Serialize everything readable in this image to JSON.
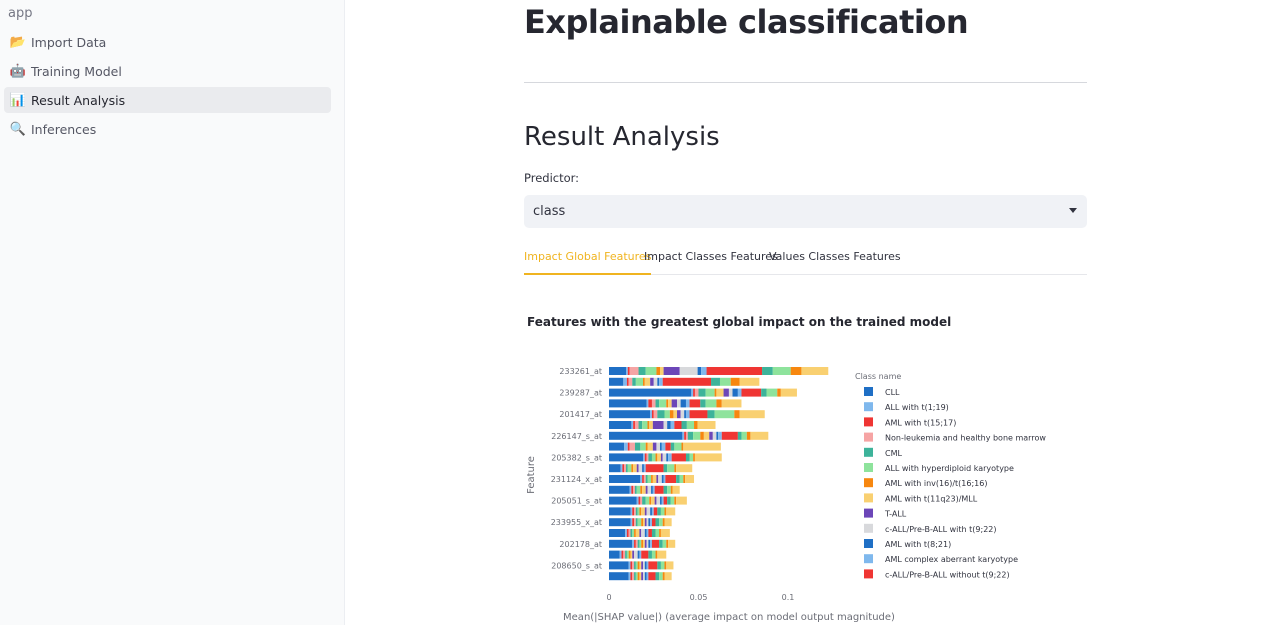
{
  "sidebar": {
    "app_label": "app",
    "items": [
      {
        "icon": "📂",
        "icon_name": "folder-icon",
        "label": "Import Data",
        "active": false
      },
      {
        "icon": "🤖",
        "icon_name": "robot-icon",
        "label": "Training Model",
        "active": false
      },
      {
        "icon": "📊",
        "icon_name": "bar-chart-icon",
        "label": "Result Analysis",
        "active": true
      },
      {
        "icon": "🔍",
        "icon_name": "magnifier-icon",
        "label": "Inferences",
        "active": false
      }
    ]
  },
  "main": {
    "title": "Explainable classification",
    "section_title": "Result Analysis",
    "predictor_label": "Predictor:",
    "predictor_value": "class",
    "tabs": [
      {
        "label": "Impact Global Features",
        "active": true
      },
      {
        "label": "Impact Classes Features",
        "active": false
      },
      {
        "label": "Values Classes Features",
        "active": false
      }
    ],
    "chart_title": "Features with the greatest global impact on the trained model"
  },
  "chart_data": {
    "type": "bar",
    "orientation": "horizontal",
    "stacked": true,
    "xlabel": "Mean(|SHAP value|) (average impact on model output magnitude)",
    "ylabel": "Feature",
    "xlim": [
      0,
      0.13
    ],
    "xticks": [
      0,
      0.05,
      0.1
    ],
    "xtick_labels": [
      "0",
      "0.05",
      "0.1"
    ],
    "legend_title": "Class name",
    "legend_position": "right",
    "categories": [
      "233261_at",
      "",
      "239287_at",
      "",
      "201417_at",
      "",
      "226147_s_at",
      "",
      "205382_s_at",
      "",
      "231124_x_at",
      "",
      "205051_s_at",
      "",
      "233955_x_at",
      "",
      "202178_at",
      "",
      "208650_s_at",
      ""
    ],
    "series": [
      {
        "name": "CLL",
        "color": "#1f6fc5",
        "values": [
          0.0095,
          0.008,
          0.046,
          0.021,
          0.023,
          0.0125,
          0.041,
          0.0085,
          0.019,
          0.0065,
          0.0175,
          0.0115,
          0.0155,
          0.012,
          0.012,
          0.009,
          0.013,
          0.006,
          0.011,
          0.011
        ]
      },
      {
        "name": "ALL with t(1;19)",
        "color": "#7fb8ed",
        "values": [
          0.001,
          0.002,
          0.001,
          0.001,
          0.001,
          0.001,
          0.001,
          0.002,
          0.001,
          0.001,
          0.001,
          0.001,
          0.001,
          0.001,
          0.001,
          0.001,
          0.001,
          0.001,
          0.001,
          0.001
        ]
      },
      {
        "name": "AML with t(15;17)",
        "color": "#ef3533",
        "values": [
          0.001,
          0.001,
          0.001,
          0.002,
          0.001,
          0.001,
          0.001,
          0.001,
          0.001,
          0.001,
          0.001,
          0.001,
          0.001,
          0.001,
          0.001,
          0.001,
          0.001,
          0.001,
          0.001,
          0.001
        ]
      },
      {
        "name": "Non-leukemia and healthy bone marrow",
        "color": "#f6a4a4",
        "values": [
          0.005,
          0.002,
          0.002,
          0.002,
          0.002,
          0.002,
          0.001,
          0.003,
          0.001,
          0.001,
          0.001,
          0.001,
          0.001,
          0.001,
          0.001,
          0.001,
          0.001,
          0.001,
          0.001,
          0.001
        ]
      },
      {
        "name": "CML",
        "color": "#3db39a",
        "values": [
          0.004,
          0.002,
          0.004,
          0.002,
          0.004,
          0.002,
          0.003,
          0.003,
          0.002,
          0.001,
          0.001,
          0.001,
          0.002,
          0.001,
          0.001,
          0.001,
          0.001,
          0.001,
          0.001,
          0.001
        ]
      },
      {
        "name": "ALL with hyperdiploid karyotype",
        "color": "#8ee39c",
        "values": [
          0.006,
          0.004,
          0.005,
          0.004,
          0.003,
          0.003,
          0.004,
          0.003,
          0.002,
          0.002,
          0.002,
          0.002,
          0.002,
          0.001,
          0.002,
          0.001,
          0.001,
          0.001,
          0.001,
          0.001
        ]
      },
      {
        "name": "AML with inv(16)/t(16;16)",
        "color": "#f7870f",
        "values": [
          0.002,
          0.001,
          0.001,
          0.001,
          0.002,
          0.001,
          0.002,
          0.001,
          0.001,
          0.001,
          0.001,
          0.001,
          0.001,
          0.001,
          0.001,
          0.001,
          0.001,
          0.001,
          0.001,
          0.001
        ]
      },
      {
        "name": "AML with t(11q23)/MLL",
        "color": "#f9d071",
        "values": [
          0.002,
          0.003,
          0.004,
          0.002,
          0.002,
          0.002,
          0.003,
          0.003,
          0.002,
          0.002,
          0.002,
          0.002,
          0.002,
          0.002,
          0.001,
          0.002,
          0.001,
          0.001,
          0.001,
          0.001
        ]
      },
      {
        "name": "T-ALL",
        "color": "#6c46b8",
        "values": [
          0.009,
          0.002,
          0.003,
          0.003,
          0.002,
          0.006,
          0.002,
          0.002,
          0.001,
          0.001,
          0.001,
          0.001,
          0.001,
          0.001,
          0.001,
          0.001,
          0.001,
          0.001,
          0.001,
          0.001
        ]
      },
      {
        "name": "c-ALL/Pre-B-ALL with t(9;22)",
        "color": "#d8d9dc",
        "values": [
          0.01,
          0.002,
          0.002,
          0.002,
          0.002,
          0.002,
          0.002,
          0.002,
          0.002,
          0.002,
          0.002,
          0.002,
          0.002,
          0.002,
          0.001,
          0.002,
          0.001,
          0.002,
          0.001,
          0.001
        ]
      },
      {
        "name": "AML with t(8;21)",
        "color": "#1f6fc5",
        "values": [
          0.002,
          0.001,
          0.003,
          0.003,
          0.001,
          0.002,
          0.001,
          0.001,
          0.001,
          0.001,
          0.001,
          0.001,
          0.001,
          0.001,
          0.001,
          0.001,
          0.001,
          0.001,
          0.001,
          0.001
        ]
      },
      {
        "name": "AML complex aberrant karyotype",
        "color": "#7fb8ed",
        "values": [
          0.003,
          0.002,
          0.002,
          0.002,
          0.002,
          0.002,
          0.002,
          0.002,
          0.002,
          0.001,
          0.001,
          0.001,
          0.001,
          0.001,
          0.001,
          0.001,
          0.001,
          0.001,
          0.001,
          0.001
        ]
      },
      {
        "name": "c-ALL/Pre-B-ALL without t(9;22)",
        "color": "#ef3533",
        "values": [
          0.031,
          0.027,
          0.011,
          0.006,
          0.01,
          0.004,
          0.009,
          0.003,
          0.008,
          0.01,
          0.006,
          0.005,
          0.002,
          0.002,
          0.002,
          0.002,
          0.004,
          0.004,
          0.005,
          0.004
        ]
      },
      {
        "name": "",
        "color": "#3db39a",
        "values": [
          0.006,
          0.005,
          0.003,
          0.003,
          0.004,
          0.003,
          0.002,
          0.002,
          0.002,
          0.002,
          0.002,
          0.002,
          0.002,
          0.002,
          0.002,
          0.002,
          0.002,
          0.002,
          0.002,
          0.002
        ]
      },
      {
        "name": "",
        "color": "#8ee39c",
        "values": [
          0.01,
          0.006,
          0.006,
          0.006,
          0.011,
          0.004,
          0.003,
          0.004,
          0.002,
          0.004,
          0.002,
          0.002,
          0.002,
          0.002,
          0.002,
          0.002,
          0.002,
          0.002,
          0.002,
          0.002
        ]
      },
      {
        "name": "",
        "color": "#f7870f",
        "values": [
          0.006,
          0.005,
          0.002,
          0.003,
          0.003,
          0.002,
          0.002,
          0.001,
          0.001,
          0.001,
          0.001,
          0.001,
          0.001,
          0.001,
          0.001,
          0.001,
          0.001,
          0.001,
          0.001,
          0.001
        ]
      },
      {
        "name": "",
        "color": "#f9d071",
        "values": [
          0.015,
          0.011,
          0.009,
          0.011,
          0.014,
          0.01,
          0.01,
          0.021,
          0.015,
          0.009,
          0.005,
          0.004,
          0.006,
          0.005,
          0.004,
          0.005,
          0.004,
          0.005,
          0.004,
          0.004
        ]
      }
    ]
  }
}
